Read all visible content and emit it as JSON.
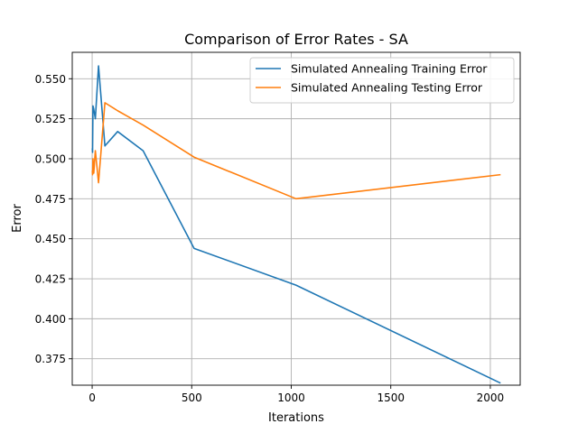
{
  "chart_data": {
    "type": "line",
    "title": "Comparison of Error Rates - SA",
    "xlabel": "Iterations",
    "ylabel": "Error",
    "xlim": [
      -100,
      2150
    ],
    "ylim": [
      0.3585,
      0.5665
    ],
    "xticks": [
      0,
      500,
      1000,
      1500,
      2000
    ],
    "xtick_labels": [
      "0",
      "500",
      "1000",
      "1500",
      "2000"
    ],
    "yticks": [
      0.375,
      0.4,
      0.425,
      0.45,
      0.475,
      0.5,
      0.525,
      0.55
    ],
    "ytick_labels": [
      "0.375",
      "0.400",
      "0.425",
      "0.450",
      "0.475",
      "0.500",
      "0.525",
      "0.550"
    ],
    "grid": true,
    "legend_position": "top-right",
    "series": [
      {
        "name": "Simulated Annealing Training Error",
        "color": "#1f77b4",
        "x": [
          1,
          2,
          4,
          8,
          16,
          32,
          64,
          128,
          256,
          512,
          1024,
          2048
        ],
        "y": [
          0.506,
          0.504,
          0.533,
          0.531,
          0.525,
          0.558,
          0.508,
          0.517,
          0.505,
          0.444,
          0.421,
          0.36
        ]
      },
      {
        "name": "Simulated Annealing Testing Error",
        "color": "#ff7f0e",
        "x": [
          1,
          2,
          4,
          8,
          16,
          32,
          64,
          128,
          256,
          512,
          1024,
          2048
        ],
        "y": [
          0.492,
          0.49,
          0.5,
          0.491,
          0.505,
          0.485,
          0.535,
          0.53,
          0.521,
          0.501,
          0.475,
          0.49
        ]
      }
    ]
  }
}
